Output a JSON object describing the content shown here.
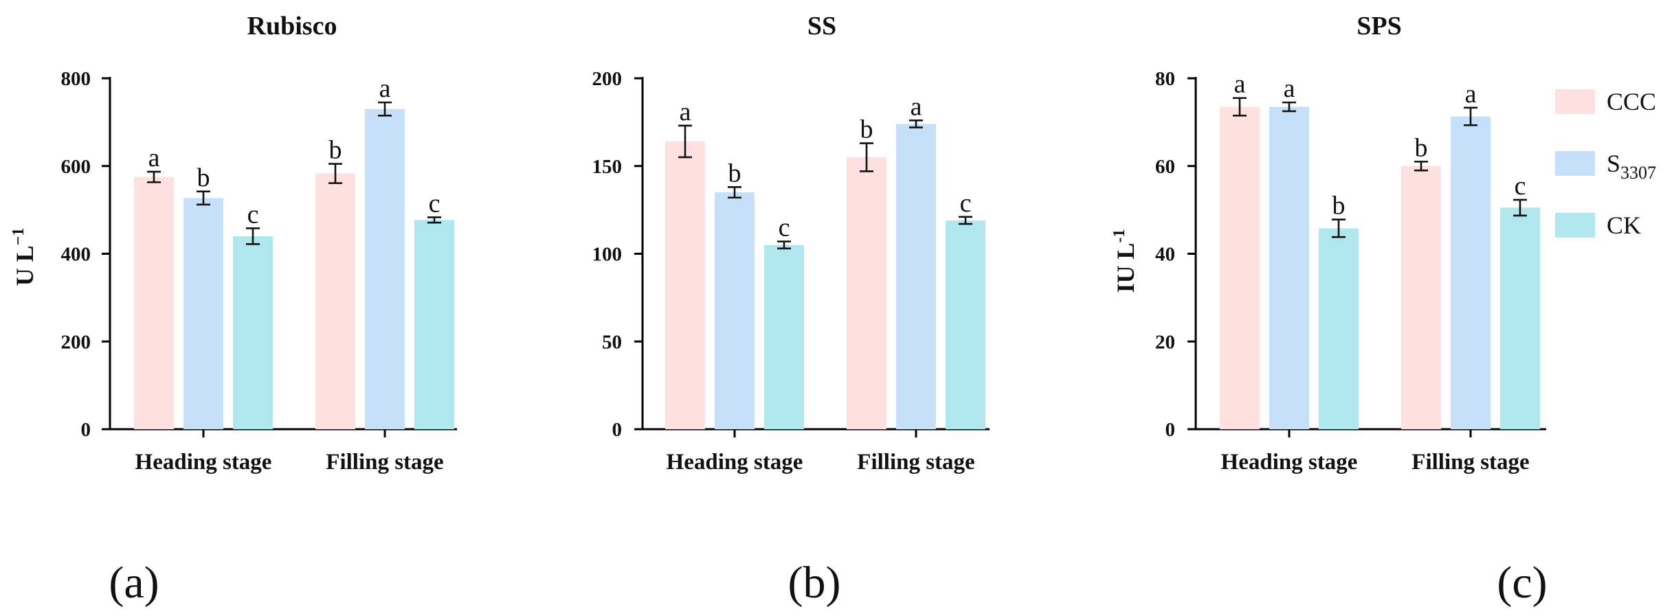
{
  "legend": [
    {
      "label": "CCC",
      "color": "#FFE0E0"
    },
    {
      "label": "S",
      "sub": "3307",
      "color": "#C6E0FA"
    },
    {
      "label": "CK",
      "color": "#B0E6EE"
    }
  ],
  "chart_data": [
    {
      "type": "bar",
      "title": "Rubisco",
      "ylabel": "U L",
      "ylabel_sup": "−1",
      "categories": [
        "Heading stage",
        "Filling stage"
      ],
      "ylim": [
        0,
        800
      ],
      "yticks": [
        0,
        200,
        400,
        600,
        800
      ],
      "series": [
        {
          "name": "CCC",
          "values": [
            575,
            583
          ],
          "errors": [
            12,
            22
          ],
          "letters": [
            "a",
            "b"
          ]
        },
        {
          "name": "S3307",
          "values": [
            527,
            730
          ],
          "errors": [
            15,
            15
          ],
          "letters": [
            "b",
            "a"
          ]
        },
        {
          "name": "CK",
          "values": [
            440,
            477
          ],
          "errors": [
            18,
            6
          ],
          "letters": [
            "c",
            "c"
          ]
        }
      ],
      "panel_label": "(a)"
    },
    {
      "type": "bar",
      "title": "SS",
      "ylabel": "",
      "categories": [
        "Heading stage",
        "Filling stage"
      ],
      "ylim": [
        0,
        200
      ],
      "yticks": [
        0,
        50,
        100,
        150,
        200
      ],
      "series": [
        {
          "name": "CCC",
          "values": [
            164,
            155
          ],
          "errors": [
            9,
            8
          ],
          "letters": [
            "a",
            "b"
          ]
        },
        {
          "name": "S3307",
          "values": [
            135,
            174
          ],
          "errors": [
            3,
            2
          ],
          "letters": [
            "b",
            "a"
          ]
        },
        {
          "name": "CK",
          "values": [
            105,
            119
          ],
          "errors": [
            2,
            2
          ],
          "letters": [
            "c",
            "c"
          ]
        }
      ],
      "panel_label": "(b)"
    },
    {
      "type": "bar",
      "title": "SPS",
      "ylabel": "IU L",
      "ylabel_sup": "-1",
      "categories": [
        "Heading stage",
        "Filling stage"
      ],
      "ylim": [
        0,
        80
      ],
      "yticks": [
        0,
        20,
        40,
        60,
        80
      ],
      "series": [
        {
          "name": "CCC",
          "values": [
            73.5,
            60
          ],
          "errors": [
            2,
            1
          ],
          "letters": [
            "a",
            "b"
          ]
        },
        {
          "name": "S3307",
          "values": [
            73.5,
            71.3
          ],
          "errors": [
            1,
            2
          ],
          "letters": [
            "a",
            "a"
          ]
        },
        {
          "name": "CK",
          "values": [
            45.8,
            50.5
          ],
          "errors": [
            2,
            1.8
          ],
          "letters": [
            "b",
            "c"
          ]
        }
      ],
      "panel_label": "(c)"
    }
  ]
}
